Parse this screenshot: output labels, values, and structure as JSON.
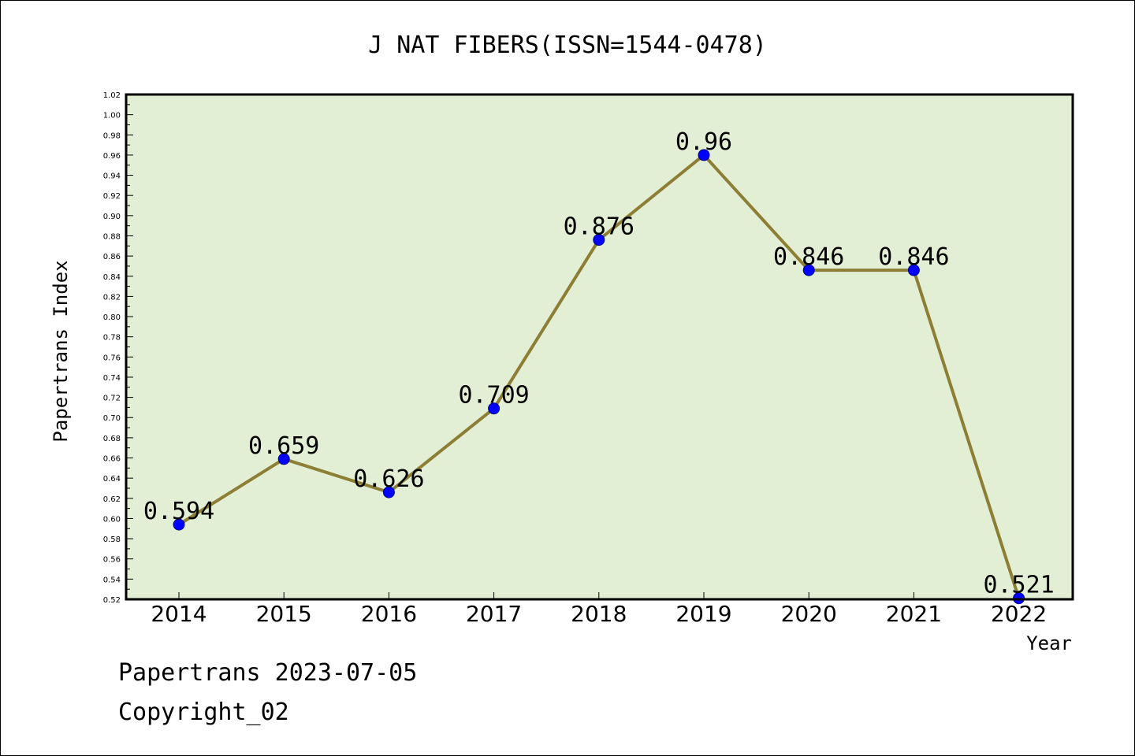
{
  "chart_data": {
    "type": "line",
    "title": "J NAT FIBERS(ISSN=1544-0478)",
    "xlabel": "Year",
    "ylabel": "Papertrans Index",
    "categories": [
      "2014",
      "2015",
      "2016",
      "2017",
      "2018",
      "2019",
      "2020",
      "2021",
      "2022"
    ],
    "values": [
      0.594,
      0.659,
      0.626,
      0.709,
      0.876,
      0.96,
      0.846,
      0.846,
      0.521
    ],
    "data_labels": [
      "0.594",
      "0.659",
      "0.626",
      "0.709",
      "0.876",
      "0.96",
      "0.846",
      "0.846",
      "0.521"
    ],
    "ylim": [
      0.52,
      1.02
    ],
    "y_tick_labels": [
      "0.52",
      "0.54",
      "0.56",
      "0.58",
      "0.60",
      "0.62",
      "0.64",
      "0.66",
      "0.68",
      "0.70",
      "0.72",
      "0.74",
      "0.76",
      "0.78",
      "0.80",
      "0.82",
      "0.84",
      "0.86",
      "0.88",
      "0.90",
      "0.92",
      "0.94",
      "0.96",
      "0.98",
      "1.00",
      "1.02"
    ],
    "grid": false,
    "colors": {
      "line": "#8c7f35",
      "marker": "#0000ff",
      "plot_background": "#e2efd5"
    }
  },
  "footer": {
    "line1": "Papertrans 2023-07-05",
    "line2": "Copyright_02"
  }
}
